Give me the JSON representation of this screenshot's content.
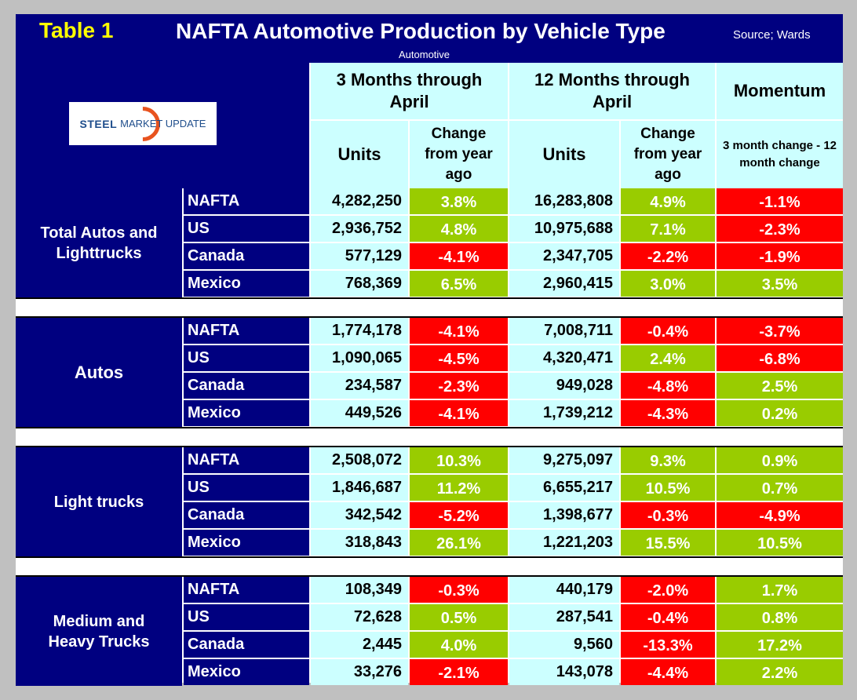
{
  "header": {
    "table_label": "Table 1",
    "title": "NAFTA Automotive Production by Vehicle Type",
    "source": "Source; Wards",
    "subtitle": "Automotive"
  },
  "logo": {
    "text_left": "STEEL",
    "text_right": "MARKET UPDATE"
  },
  "columns": {
    "three_months": "3 Months through April",
    "twelve_months": "12 Months through April",
    "momentum": "Momentum",
    "units": "Units",
    "change": "Change from year ago",
    "momentum_sub": "3 month change - 12 month change"
  },
  "colors": {
    "positive": "#99cc00",
    "negative": "#ff0000",
    "navy": "#000080",
    "cyan": "#ccffff"
  },
  "groups": [
    {
      "name": "Total Autos and Lighttrucks",
      "rows": [
        {
          "country": "NAFTA",
          "units3": "4,282,250",
          "chg3": "3.8%",
          "units12": "16,283,808",
          "chg12": "4.9%",
          "momentum": "-1.1%"
        },
        {
          "country": "US",
          "units3": "2,936,752",
          "chg3": "4.8%",
          "units12": "10,975,688",
          "chg12": "7.1%",
          "momentum": "-2.3%"
        },
        {
          "country": "Canada",
          "units3": "577,129",
          "chg3": "-4.1%",
          "units12": "2,347,705",
          "chg12": "-2.2%",
          "momentum": "-1.9%"
        },
        {
          "country": "Mexico",
          "units3": "768,369",
          "chg3": "6.5%",
          "units12": "2,960,415",
          "chg12": "3.0%",
          "momentum": "3.5%"
        }
      ]
    },
    {
      "name": "Autos",
      "rows": [
        {
          "country": "NAFTA",
          "units3": "1,774,178",
          "chg3": "-4.1%",
          "units12": "7,008,711",
          "chg12": "-0.4%",
          "momentum": "-3.7%"
        },
        {
          "country": "US",
          "units3": "1,090,065",
          "chg3": "-4.5%",
          "units12": "4,320,471",
          "chg12": "2.4%",
          "momentum": "-6.8%"
        },
        {
          "country": "Canada",
          "units3": "234,587",
          "chg3": "-2.3%",
          "units12": "949,028",
          "chg12": "-4.8%",
          "momentum": "2.5%"
        },
        {
          "country": "Mexico",
          "units3": "449,526",
          "chg3": "-4.1%",
          "units12": "1,739,212",
          "chg12": "-4.3%",
          "momentum": "0.2%"
        }
      ]
    },
    {
      "name": "Light trucks",
      "rows": [
        {
          "country": "NAFTA",
          "units3": "2,508,072",
          "chg3": "10.3%",
          "units12": "9,275,097",
          "chg12": "9.3%",
          "momentum": "0.9%"
        },
        {
          "country": "US",
          "units3": "1,846,687",
          "chg3": "11.2%",
          "units12": "6,655,217",
          "chg12": "10.5%",
          "momentum": "0.7%"
        },
        {
          "country": "Canada",
          "units3": "342,542",
          "chg3": "-5.2%",
          "units12": "1,398,677",
          "chg12": "-0.3%",
          "momentum": "-4.9%"
        },
        {
          "country": "Mexico",
          "units3": "318,843",
          "chg3": "26.1%",
          "units12": "1,221,203",
          "chg12": "15.5%",
          "momentum": "10.5%"
        }
      ]
    },
    {
      "name": "Medium and Heavy Trucks",
      "rows": [
        {
          "country": "NAFTA",
          "units3": "108,349",
          "chg3": "-0.3%",
          "units12": "440,179",
          "chg12": "-2.0%",
          "momentum": "1.7%"
        },
        {
          "country": "US",
          "units3": "72,628",
          "chg3": "0.5%",
          "units12": "287,541",
          "chg12": "-0.4%",
          "momentum": "0.8%"
        },
        {
          "country": "Canada",
          "units3": "2,445",
          "chg3": "4.0%",
          "units12": "9,560",
          "chg12": "-13.3%",
          "momentum": "17.2%"
        },
        {
          "country": "Mexico",
          "units3": "33,276",
          "chg3": "-2.1%",
          "units12": "143,078",
          "chg12": "-4.4%",
          "momentum": "2.2%"
        }
      ]
    }
  ]
}
